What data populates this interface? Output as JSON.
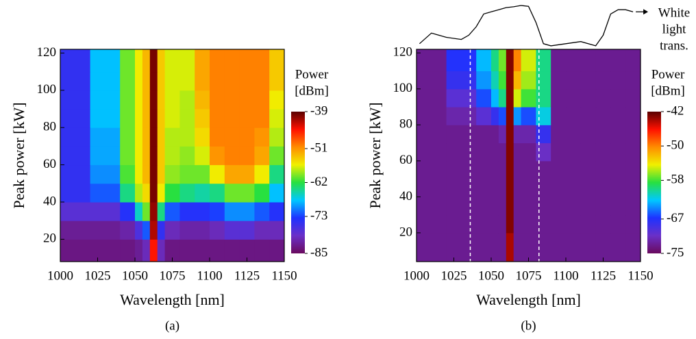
{
  "chart_data": [
    {
      "type": "heatmap",
      "caption": "(a)",
      "xlabel": "Wavelength [nm]",
      "ylabel": "Peak power [kW]",
      "colorbar_label": [
        "Power",
        "[dBm]"
      ],
      "xlim": [
        1000,
        1150
      ],
      "xticks": [
        1000,
        1025,
        1050,
        1075,
        1100,
        1125,
        1150
      ],
      "ylim": [
        8,
        122
      ],
      "yticks": [
        20,
        40,
        60,
        80,
        100,
        120
      ],
      "zlim": [
        -85,
        -39
      ],
      "zticks": [
        -39,
        -51,
        -62,
        -73,
        -85
      ],
      "colormap": [
        "#6a0a5e",
        "#6a30c8",
        "#1e32ff",
        "#00c8ff",
        "#28e040",
        "#f0f000",
        "#ff8c00",
        "#ff1000",
        "#5a0000"
      ],
      "x_edges": [
        1000,
        1020,
        1040,
        1050,
        1055,
        1060,
        1065,
        1070,
        1080,
        1090,
        1100,
        1110,
        1120,
        1130,
        1140,
        1150
      ],
      "y_edges": [
        8,
        20,
        30,
        40,
        50,
        60,
        70,
        80,
        90,
        100,
        110,
        122
      ],
      "z": [
        [
          -83,
          -83,
          -83,
          -82,
          -80,
          -45,
          -80,
          -83,
          -83,
          -83,
          -83,
          -83,
          -83,
          -83,
          -83
        ],
        [
          -82,
          -82,
          -81,
          -77,
          -72,
          -42,
          -75,
          -80,
          -81,
          -81,
          -80,
          -78,
          -78,
          -80,
          -80
        ],
        [
          -78,
          -78,
          -74,
          -66,
          -60,
          -41,
          -64,
          -72,
          -74,
          -74,
          -73,
          -70,
          -70,
          -72,
          -74
        ],
        [
          -75,
          -72,
          -64,
          -58,
          -55,
          -40,
          -56,
          -62,
          -64,
          -65,
          -64,
          -60,
          -60,
          -62,
          -68
        ],
        [
          -75,
          -70,
          -61,
          -56,
          -53,
          -40,
          -54,
          -59,
          -60,
          -60,
          -56,
          -52,
          -52,
          -56,
          -64
        ],
        [
          -75,
          -69,
          -60,
          -56,
          -53,
          -40,
          -54,
          -58,
          -59,
          -57,
          -51,
          -50,
          -50,
          -52,
          -60
        ],
        [
          -75,
          -69,
          -60,
          -56,
          -53,
          -40,
          -54,
          -58,
          -58,
          -55,
          -50,
          -50,
          -50,
          -51,
          -58
        ],
        [
          -75,
          -68,
          -60,
          -56,
          -53,
          -40,
          -54,
          -57,
          -58,
          -54,
          -50,
          -50,
          -50,
          -50,
          -57
        ],
        [
          -75,
          -68,
          -60,
          -56,
          -53,
          -40,
          -54,
          -57,
          -58,
          -53,
          -50,
          -50,
          -50,
          -50,
          -56
        ],
        [
          -75,
          -68,
          -60,
          -56,
          -53,
          -40,
          -54,
          -57,
          -57,
          -52,
          -50,
          -50,
          -50,
          -50,
          -54
        ],
        [
          -75,
          -68,
          -60,
          -56,
          -53,
          -40,
          -54,
          -57,
          -57,
          -52,
          -50,
          -50,
          -50,
          -50,
          -54
        ]
      ]
    },
    {
      "type": "heatmap",
      "caption": "(b)",
      "xlabel": "Wavelength [nm]",
      "ylabel": "Peak power [kW]",
      "colorbar_label": [
        "Power",
        "[dBm]"
      ],
      "xlim": [
        1000,
        1150
      ],
      "xticks": [
        1000,
        1025,
        1050,
        1075,
        1100,
        1125,
        1150
      ],
      "ylim": [
        4,
        122
      ],
      "yticks": [
        20,
        40,
        60,
        80,
        100,
        120
      ],
      "zlim": [
        -75,
        -42
      ],
      "zticks": [
        -42,
        -50,
        -58,
        -67,
        -75
      ],
      "colormap": [
        "#6a0a5e",
        "#6a30c8",
        "#1e32ff",
        "#00c8ff",
        "#28e040",
        "#f0f000",
        "#ff8c00",
        "#ff1000",
        "#5a0000"
      ],
      "x_edges": [
        1000,
        1020,
        1040,
        1050,
        1055,
        1060,
        1065,
        1070,
        1080,
        1090,
        1100,
        1110,
        1120,
        1130,
        1140,
        1150
      ],
      "y_edges": [
        4,
        20,
        30,
        40,
        50,
        60,
        70,
        80,
        90,
        100,
        110,
        122
      ],
      "z": [
        [
          -73,
          -73,
          -73,
          -73,
          -73,
          -44,
          -73,
          -73,
          -73,
          -73,
          -73,
          -73,
          -73,
          -73,
          -73
        ],
        [
          -73,
          -73,
          -73,
          -73,
          -73,
          -43,
          -73,
          -73,
          -73,
          -73,
          -73,
          -73,
          -73,
          -73,
          -73
        ],
        [
          -73,
          -73,
          -73,
          -73,
          -73,
          -43,
          -73,
          -73,
          -73,
          -73,
          -73,
          -73,
          -73,
          -73,
          -73
        ],
        [
          -73,
          -73,
          -73,
          -73,
          -73,
          -43,
          -73,
          -73,
          -73,
          -73,
          -73,
          -73,
          -73,
          -73,
          -73
        ],
        [
          -73,
          -73,
          -73,
          -73,
          -73,
          -43,
          -73,
          -73,
          -73,
          -73,
          -73,
          -73,
          -73,
          -73,
          -73
        ],
        [
          -73,
          -73,
          -73,
          -73,
          -73,
          -43,
          -73,
          -73,
          -71,
          -73,
          -73,
          -73,
          -73,
          -73,
          -73
        ],
        [
          -73,
          -73,
          -73,
          -73,
          -72,
          -43,
          -72,
          -72,
          -68,
          -73,
          -73,
          -73,
          -73,
          -73,
          -73
        ],
        [
          -73,
          -72,
          -70,
          -68,
          -66,
          -43,
          -64,
          -66,
          -62,
          -73,
          -73,
          -73,
          -73,
          -73,
          -73
        ],
        [
          -73,
          -70,
          -66,
          -63,
          -60,
          -43,
          -55,
          -58,
          -60,
          -73,
          -73,
          -73,
          -73,
          -73,
          -73
        ],
        [
          -73,
          -68,
          -64,
          -61,
          -58,
          -43,
          -52,
          -56,
          -60,
          -73,
          -73,
          -73,
          -73,
          -73,
          -73
        ],
        [
          -73,
          -67,
          -63,
          -60,
          -57,
          -43,
          -50,
          -55,
          -60,
          -73,
          -73,
          -73,
          -73,
          -73,
          -73
        ]
      ],
      "vlines": [
        1036,
        1082
      ],
      "vline_color": "#ffffff",
      "overlay": {
        "label": [
          "White",
          "light",
          "trans."
        ],
        "color": "#000000",
        "x": [
          1002,
          1010,
          1020,
          1030,
          1035,
          1040,
          1045,
          1050,
          1055,
          1060,
          1065,
          1070,
          1075,
          1080,
          1085,
          1090,
          1100,
          1110,
          1120,
          1125,
          1130,
          1135,
          1140,
          1145
        ],
        "values": [
          0.1,
          0.35,
          0.25,
          0.2,
          0.3,
          0.5,
          0.8,
          0.85,
          0.9,
          0.95,
          0.97,
          1.0,
          0.98,
          0.6,
          0.1,
          0.05,
          0.1,
          0.15,
          0.05,
          0.3,
          0.8,
          0.9,
          0.9,
          0.85
        ]
      }
    }
  ]
}
